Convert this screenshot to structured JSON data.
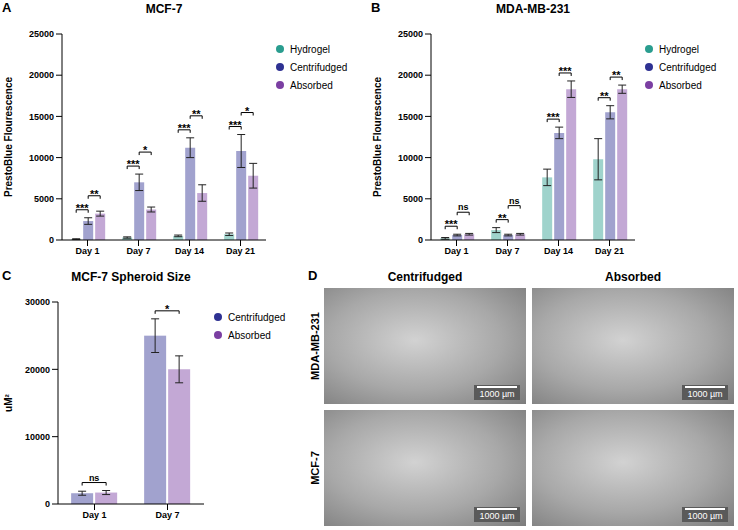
{
  "chart_data": [
    {
      "panel": "A",
      "type": "bar",
      "title": "MCF-7",
      "y_label": "PrestoBlue Flourescence",
      "categories": [
        "Day 1",
        "Day 7",
        "Day 14",
        "Day 21"
      ],
      "series": [
        {
          "name": "Hydrogel",
          "color": "#2a9d8f",
          "values": [
            100,
            300,
            500,
            700
          ],
          "errors": [
            50,
            80,
            100,
            150
          ]
        },
        {
          "name": "Centrifudged",
          "color": "#2e3192",
          "values": [
            2300,
            7000,
            11200,
            10800
          ],
          "errors": [
            400,
            1000,
            1200,
            2000
          ]
        },
        {
          "name": "Absorbed",
          "color": "#7b3fa2",
          "values": [
            3200,
            3700,
            5700,
            7800
          ],
          "errors": [
            300,
            300,
            1000,
            1500
          ]
        }
      ],
      "ylim": [
        0,
        25000
      ],
      "yticks": [
        0,
        5000,
        10000,
        15000,
        20000,
        25000
      ],
      "legend": "right",
      "annotations": [
        {
          "category": "Day 1",
          "pair": [
            "Hydrogel",
            "Centrifudged"
          ],
          "text": "***"
        },
        {
          "category": "Day 1",
          "pair": [
            "Centrifudged",
            "Absorbed"
          ],
          "text": "**"
        },
        {
          "category": "Day 7",
          "pair": [
            "Hydrogel",
            "Centrifudged"
          ],
          "text": "***"
        },
        {
          "category": "Day 7",
          "pair": [
            "Centrifudged",
            "Absorbed"
          ],
          "text": "*"
        },
        {
          "category": "Day 14",
          "pair": [
            "Hydrogel",
            "Centrifudged"
          ],
          "text": "***"
        },
        {
          "category": "Day 14",
          "pair": [
            "Centrifudged",
            "Absorbed"
          ],
          "text": "**"
        },
        {
          "category": "Day 21",
          "pair": [
            "Hydrogel",
            "Centrifudged"
          ],
          "text": "***"
        },
        {
          "category": "Day 21",
          "pair": [
            "Centrifudged",
            "Absorbed"
          ],
          "text": "*"
        }
      ]
    },
    {
      "panel": "B",
      "type": "bar",
      "title": "MDA-MB-231",
      "y_label": "PrestoBlue Flourescence",
      "categories": [
        "Day 1",
        "Day 7",
        "Day 14",
        "Day 21"
      ],
      "series": [
        {
          "name": "Hydrogel",
          "color": "#2a9d8f",
          "values": [
            200,
            1200,
            7600,
            9800
          ],
          "errors": [
            100,
            300,
            1000,
            2500
          ]
        },
        {
          "name": "Centrifudged",
          "color": "#2e3192",
          "values": [
            600,
            600,
            13000,
            15500
          ],
          "errors": [
            100,
            100,
            700,
            800
          ]
        },
        {
          "name": "Absorbed",
          "color": "#7b3fa2",
          "values": [
            700,
            700,
            18300,
            18300
          ],
          "errors": [
            100,
            100,
            1000,
            500
          ]
        }
      ],
      "ylim": [
        0,
        25000
      ],
      "yticks": [
        0,
        5000,
        10000,
        15000,
        20000,
        25000
      ],
      "legend": "right",
      "annotations": [
        {
          "category": "Day 1",
          "pair": [
            "Hydrogel",
            "Centrifudged"
          ],
          "text": "***"
        },
        {
          "category": "Day 1",
          "pair": [
            "Centrifudged",
            "Absorbed"
          ],
          "text": "ns"
        },
        {
          "category": "Day 7",
          "pair": [
            "Hydrogel",
            "Centrifudged"
          ],
          "text": "**"
        },
        {
          "category": "Day 7",
          "pair": [
            "Centrifudged",
            "Absorbed"
          ],
          "text": "ns"
        },
        {
          "category": "Day 14",
          "pair": [
            "Hydrogel",
            "Centrifudged"
          ],
          "text": "***"
        },
        {
          "category": "Day 14",
          "pair": [
            "Centrifudged",
            "Absorbed"
          ],
          "text": "***"
        },
        {
          "category": "Day 21",
          "pair": [
            "Hydrogel",
            "Centrifudged"
          ],
          "text": "**"
        },
        {
          "category": "Day 21",
          "pair": [
            "Centrifudged",
            "Absorbed"
          ],
          "text": "**"
        }
      ]
    },
    {
      "panel": "C",
      "type": "bar",
      "title": "MCF-7 Spheroid Size",
      "y_label": "uM²",
      "categories": [
        "Day 1",
        "Day 7"
      ],
      "series": [
        {
          "name": "Centrifudged",
          "color": "#2e3192",
          "values": [
            1600,
            25000
          ],
          "errors": [
            300,
            2500
          ]
        },
        {
          "name": "Absorbed",
          "color": "#7b3fa2",
          "values": [
            1700,
            20000
          ],
          "errors": [
            300,
            2000
          ]
        }
      ],
      "ylim": [
        0,
        30000
      ],
      "yticks": [
        0,
        10000,
        20000,
        30000
      ],
      "legend": "right",
      "annotations": [
        {
          "category": "Day 1",
          "pair": [
            "Centrifudged",
            "Absorbed"
          ],
          "text": "ns"
        },
        {
          "category": "Day 7",
          "pair": [
            "Centrifudged",
            "Absorbed"
          ],
          "text": "*"
        }
      ]
    }
  ],
  "image_panel": {
    "panel": "D",
    "columns": [
      "Centrifudged",
      "Absorbed"
    ],
    "rows": [
      "MDA-MB-231",
      "MCF-7"
    ],
    "scale_bar": "1000 µm"
  }
}
